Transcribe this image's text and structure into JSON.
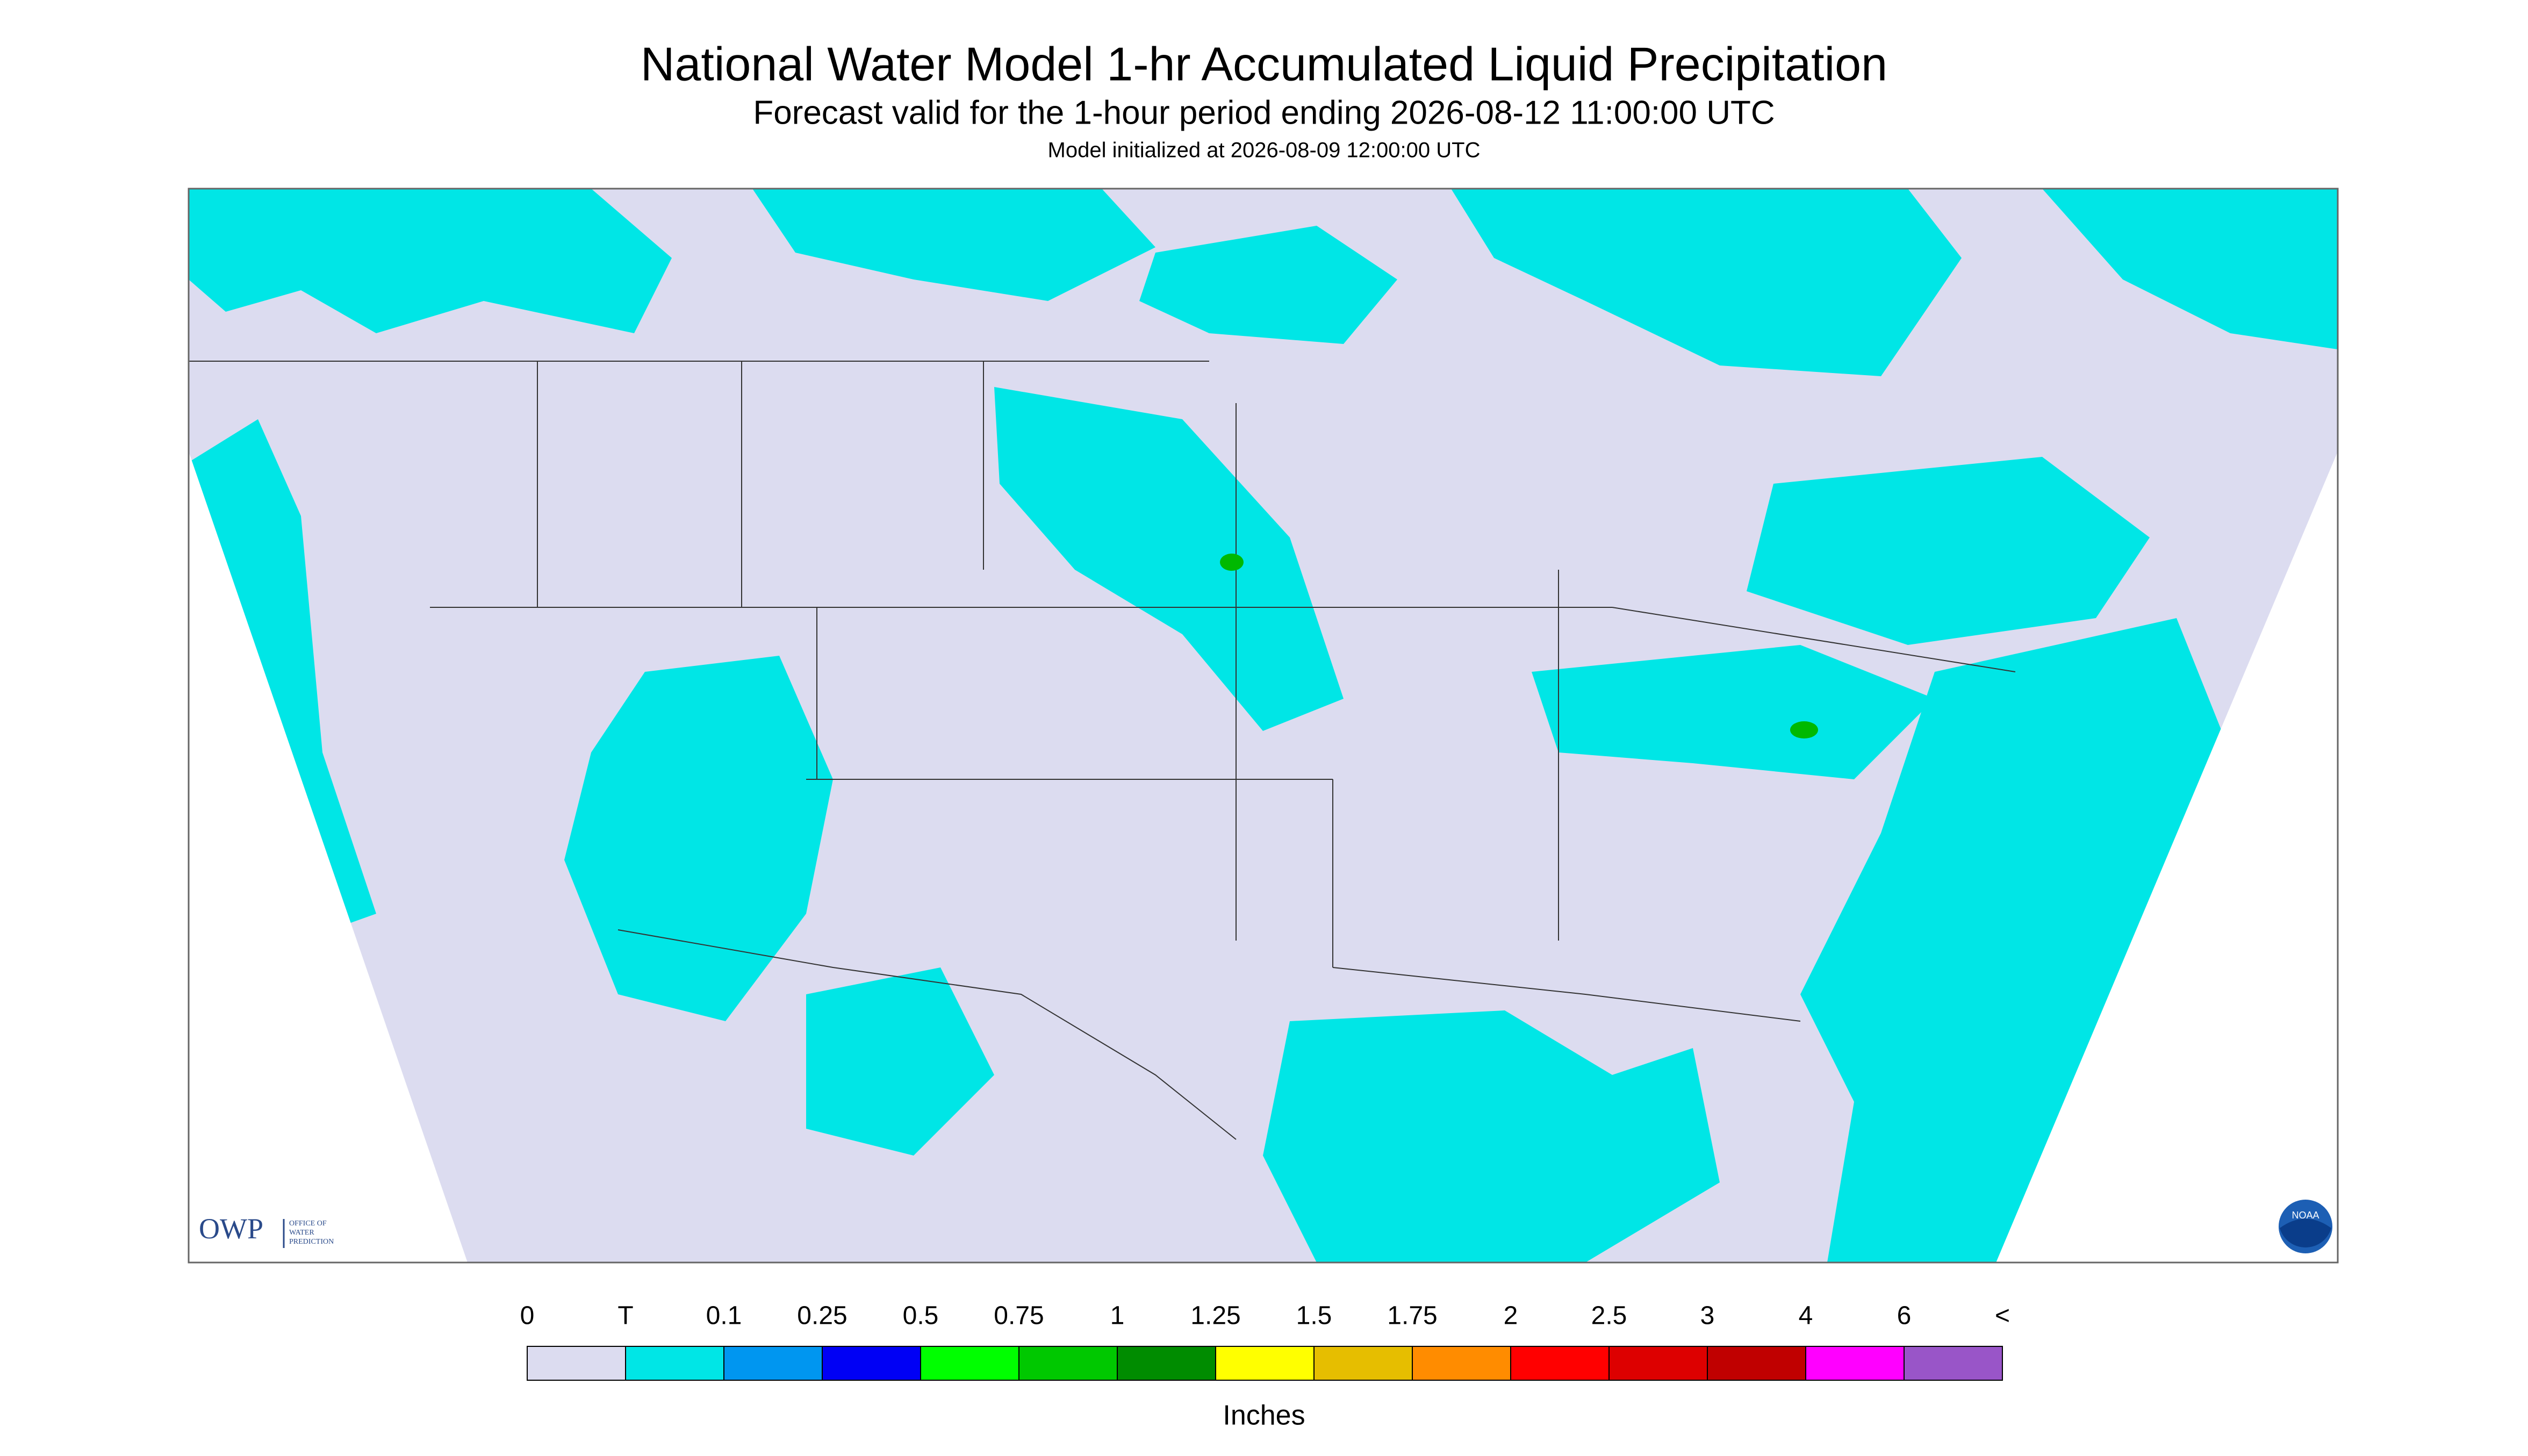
{
  "header": {
    "title": "National Water Model 1-hr Accumulated Liquid Precipitation",
    "subtitle": "Forecast valid for the 1-hour period ending 2026-08-12 11:00:00 UTC",
    "init": "Model initialized at 2026-08-09 12:00:00 UTC"
  },
  "logos": {
    "owp": "OWP",
    "owp_full": [
      "OFFICE OF",
      "WATER",
      "PREDICTION"
    ],
    "noaa": "NOAA"
  },
  "legend": {
    "labels": [
      "0",
      "T",
      "0.1",
      "0.25",
      "0.5",
      "0.75",
      "1",
      "1.25",
      "1.5",
      "1.75",
      "2",
      "2.5",
      "3",
      "4",
      "6",
      "<"
    ],
    "colors": [
      "#dcdcf0",
      "#00e6e6",
      "#0096f0",
      "#0000f5",
      "#00ff00",
      "#00c800",
      "#008c00",
      "#ffff00",
      "#e6be00",
      "#ff8c00",
      "#ff0000",
      "#dd0000",
      "#c00000",
      "#ff00ff",
      "#9955c8"
    ],
    "unit": "Inches"
  }
}
